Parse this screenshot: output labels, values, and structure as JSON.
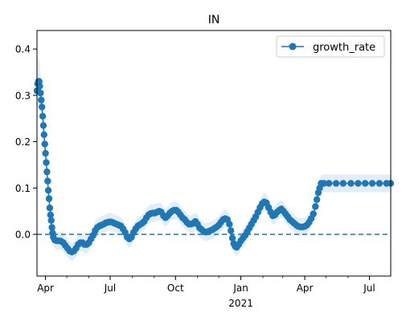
{
  "chart_data": {
    "type": "line",
    "title": "IN",
    "xlabel": "",
    "ylabel": "",
    "x_range": [
      "2020-03-20",
      "2021-07-31"
    ],
    "ylim": [
      -0.09,
      0.44
    ],
    "x_ticks": [
      {
        "date": "2020-04-01",
        "label": "Apr",
        "sublabel": ""
      },
      {
        "date": "2020-07-01",
        "label": "Jul",
        "sublabel": ""
      },
      {
        "date": "2020-10-01",
        "label": "Oct",
        "sublabel": ""
      },
      {
        "date": "2021-01-01",
        "label": "Jan",
        "sublabel": "2021"
      },
      {
        "date": "2021-04-01",
        "label": "Apr",
        "sublabel": ""
      },
      {
        "date": "2021-07-01",
        "label": "Jul",
        "sublabel": ""
      }
    ],
    "y_ticks": [
      0.0,
      0.1,
      0.2,
      0.3,
      0.4
    ],
    "y_tick_labels": [
      "0.0",
      "0.1",
      "0.2",
      "0.3",
      "0.4"
    ],
    "reference_line": {
      "y": 0.0,
      "style": "dashed"
    },
    "legend": {
      "position": "top-right",
      "entries": [
        "growth_rate"
      ]
    },
    "grid": false,
    "colors": {
      "series": "#1f77b4",
      "band": "#d6e6f5"
    },
    "series": [
      {
        "name": "growth_rate",
        "marker": "circle",
        "points": [
          [
            "2020-03-20",
            0.31
          ],
          [
            "2020-03-21",
            0.325
          ],
          [
            "2020-03-22",
            0.33
          ],
          [
            "2020-03-23",
            0.33
          ],
          [
            "2020-03-24",
            0.32
          ],
          [
            "2020-03-25",
            0.305
          ],
          [
            "2020-03-26",
            0.29
          ],
          [
            "2020-03-27",
            0.275
          ],
          [
            "2020-03-28",
            0.255
          ],
          [
            "2020-03-29",
            0.235
          ],
          [
            "2020-03-30",
            0.215
          ],
          [
            "2020-03-31",
            0.195
          ],
          [
            "2020-04-01",
            0.175
          ],
          [
            "2020-04-02",
            0.155
          ],
          [
            "2020-04-03",
            0.135
          ],
          [
            "2020-04-04",
            0.115
          ],
          [
            "2020-04-05",
            0.095
          ],
          [
            "2020-04-06",
            0.077
          ],
          [
            "2020-04-07",
            0.057
          ],
          [
            "2020-04-08",
            0.042
          ],
          [
            "2020-04-09",
            0.03
          ],
          [
            "2020-04-10",
            0.015
          ],
          [
            "2020-04-11",
            0.003
          ],
          [
            "2020-04-12",
            -0.006
          ],
          [
            "2020-04-14",
            -0.012
          ],
          [
            "2020-04-17",
            -0.014
          ],
          [
            "2020-04-20",
            -0.014
          ],
          [
            "2020-04-23",
            -0.015
          ],
          [
            "2020-04-26",
            -0.018
          ],
          [
            "2020-04-29",
            -0.024
          ],
          [
            "2020-05-02",
            -0.03
          ],
          [
            "2020-05-05",
            -0.036
          ],
          [
            "2020-05-08",
            -0.038
          ],
          [
            "2020-05-11",
            -0.036
          ],
          [
            "2020-05-14",
            -0.03
          ],
          [
            "2020-05-17",
            -0.022
          ],
          [
            "2020-05-20",
            -0.018
          ],
          [
            "2020-05-23",
            -0.018
          ],
          [
            "2020-05-26",
            -0.022
          ],
          [
            "2020-05-29",
            -0.022
          ],
          [
            "2020-06-01",
            -0.018
          ],
          [
            "2020-06-04",
            -0.01
          ],
          [
            "2020-06-07",
            -0.002
          ],
          [
            "2020-06-10",
            0.008
          ],
          [
            "2020-06-13",
            0.015
          ],
          [
            "2020-06-16",
            0.018
          ],
          [
            "2020-06-19",
            0.02
          ],
          [
            "2020-06-22",
            0.022
          ],
          [
            "2020-06-25",
            0.025
          ],
          [
            "2020-06-28",
            0.026
          ],
          [
            "2020-07-01",
            0.027
          ],
          [
            "2020-07-04",
            0.026
          ],
          [
            "2020-07-07",
            0.024
          ],
          [
            "2020-07-10",
            0.022
          ],
          [
            "2020-07-13",
            0.02
          ],
          [
            "2020-07-16",
            0.018
          ],
          [
            "2020-07-19",
            0.012
          ],
          [
            "2020-07-22",
            0.004
          ],
          [
            "2020-07-25",
            -0.006
          ],
          [
            "2020-07-28",
            -0.01
          ],
          [
            "2020-07-31",
            -0.006
          ],
          [
            "2020-08-03",
            0.004
          ],
          [
            "2020-08-06",
            0.012
          ],
          [
            "2020-08-09",
            0.018
          ],
          [
            "2020-08-12",
            0.021
          ],
          [
            "2020-08-15",
            0.024
          ],
          [
            "2020-08-18",
            0.028
          ],
          [
            "2020-08-21",
            0.036
          ],
          [
            "2020-08-24",
            0.042
          ],
          [
            "2020-08-27",
            0.045
          ],
          [
            "2020-08-30",
            0.046
          ],
          [
            "2020-09-02",
            0.046
          ],
          [
            "2020-09-05",
            0.048
          ],
          [
            "2020-09-08",
            0.05
          ],
          [
            "2020-09-11",
            0.048
          ],
          [
            "2020-09-14",
            0.04
          ],
          [
            "2020-09-17",
            0.036
          ],
          [
            "2020-09-20",
            0.04
          ],
          [
            "2020-09-23",
            0.046
          ],
          [
            "2020-09-26",
            0.05
          ],
          [
            "2020-09-29",
            0.052
          ],
          [
            "2020-10-02",
            0.052
          ],
          [
            "2020-10-05",
            0.048
          ],
          [
            "2020-10-08",
            0.042
          ],
          [
            "2020-10-11",
            0.036
          ],
          [
            "2020-10-14",
            0.032
          ],
          [
            "2020-10-17",
            0.026
          ],
          [
            "2020-10-20",
            0.022
          ],
          [
            "2020-10-23",
            0.022
          ],
          [
            "2020-10-26",
            0.024
          ],
          [
            "2020-10-29",
            0.028
          ],
          [
            "2020-11-01",
            0.022
          ],
          [
            "2020-11-04",
            0.014
          ],
          [
            "2020-11-07",
            0.01
          ],
          [
            "2020-11-10",
            0.006
          ],
          [
            "2020-11-13",
            0.005
          ],
          [
            "2020-11-16",
            0.006
          ],
          [
            "2020-11-19",
            0.008
          ],
          [
            "2020-11-22",
            0.01
          ],
          [
            "2020-11-25",
            0.013
          ],
          [
            "2020-11-28",
            0.016
          ],
          [
            "2020-12-01",
            0.02
          ],
          [
            "2020-12-04",
            0.026
          ],
          [
            "2020-12-07",
            0.032
          ],
          [
            "2020-12-10",
            0.034
          ],
          [
            "2020-12-13",
            0.032
          ],
          [
            "2020-12-16",
            0.022
          ],
          [
            "2020-12-18",
            0.008
          ],
          [
            "2020-12-20",
            -0.008
          ],
          [
            "2020-12-22",
            -0.02
          ],
          [
            "2020-12-24",
            -0.026
          ],
          [
            "2020-12-26",
            -0.028
          ],
          [
            "2020-12-29",
            -0.022
          ],
          [
            "2021-01-01",
            -0.014
          ],
          [
            "2021-01-04",
            -0.008
          ],
          [
            "2021-01-07",
            -0.002
          ],
          [
            "2021-01-10",
            0.006
          ],
          [
            "2021-01-13",
            0.014
          ],
          [
            "2021-01-16",
            0.022
          ],
          [
            "2021-01-19",
            0.03
          ],
          [
            "2021-01-22",
            0.038
          ],
          [
            "2021-01-25",
            0.048
          ],
          [
            "2021-01-28",
            0.058
          ],
          [
            "2021-01-31",
            0.066
          ],
          [
            "2021-02-03",
            0.07
          ],
          [
            "2021-02-06",
            0.068
          ],
          [
            "2021-02-09",
            0.058
          ],
          [
            "2021-02-12",
            0.048
          ],
          [
            "2021-02-15",
            0.04
          ],
          [
            "2021-02-18",
            0.042
          ],
          [
            "2021-02-21",
            0.048
          ],
          [
            "2021-02-24",
            0.052
          ],
          [
            "2021-02-27",
            0.055
          ],
          [
            "2021-03-02",
            0.05
          ],
          [
            "2021-03-05",
            0.044
          ],
          [
            "2021-03-08",
            0.038
          ],
          [
            "2021-03-11",
            0.032
          ],
          [
            "2021-03-14",
            0.028
          ],
          [
            "2021-03-17",
            0.024
          ],
          [
            "2021-03-20",
            0.02
          ],
          [
            "2021-03-23",
            0.017
          ],
          [
            "2021-03-26",
            0.016
          ],
          [
            "2021-03-29",
            0.016
          ],
          [
            "2021-04-01",
            0.017
          ],
          [
            "2021-04-04",
            0.02
          ],
          [
            "2021-04-07",
            0.026
          ],
          [
            "2021-04-10",
            0.034
          ],
          [
            "2021-04-13",
            0.044
          ],
          [
            "2021-04-16",
            0.06
          ],
          [
            "2021-04-18",
            0.075
          ],
          [
            "2021-04-20",
            0.09
          ],
          [
            "2021-04-22",
            0.1
          ],
          [
            "2021-04-24",
            0.11
          ],
          [
            "2021-04-28",
            0.11
          ],
          [
            "2021-05-05",
            0.11
          ],
          [
            "2021-05-15",
            0.11
          ],
          [
            "2021-05-25",
            0.11
          ],
          [
            "2021-06-05",
            0.11
          ],
          [
            "2021-06-15",
            0.11
          ],
          [
            "2021-06-25",
            0.11
          ],
          [
            "2021-07-05",
            0.11
          ],
          [
            "2021-07-15",
            0.11
          ],
          [
            "2021-07-25",
            0.11
          ],
          [
            "2021-07-31",
            0.11
          ]
        ]
      }
    ]
  }
}
